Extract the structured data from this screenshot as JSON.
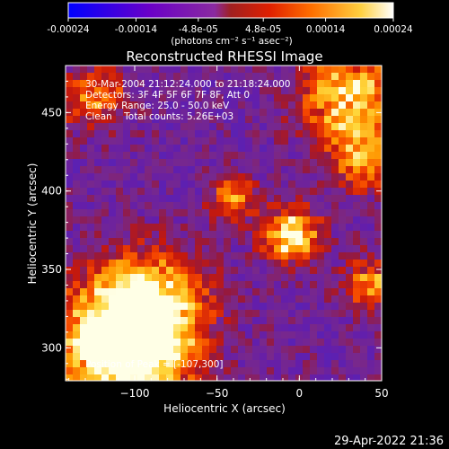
{
  "chart_data": {
    "type": "heatmap",
    "title": "Reconstructed RHESSI Image",
    "colorbar": {
      "ticks": [
        "-0.00024",
        "-0.00014",
        "-4.8e-05",
        "4.8e-05",
        "0.00014",
        "0.00024"
      ],
      "tick_values": [
        -0.00024,
        -0.00014,
        -4.8e-05,
        4.8e-05,
        0.00014,
        0.00024
      ],
      "range": [
        -0.00024,
        0.00024
      ],
      "unit_label": "(photons cm⁻² s⁻¹ asec⁻²)"
    },
    "xlabel": "Heliocentric X (arcsec)",
    "ylabel": "Heliocentric Y (arcsec)",
    "xlim": [
      -142,
      50
    ],
    "ylim": [
      279,
      480
    ],
    "xticks": [
      -100,
      -50,
      0,
      50
    ],
    "xtick_labels": [
      "−100",
      "−50",
      "0",
      "50"
    ],
    "yticks": [
      300,
      350,
      400,
      450
    ],
    "ytick_labels": [
      "300",
      "350",
      "400",
      "450"
    ],
    "annotations": {
      "time_range": "30-Mar-2004 21:12:24.000 to 21:18:24.000",
      "detectors": "Detectors: 3F 4F 5F 6F 7F 8F, Att 0",
      "energy": "Energy Range: 25.0 - 50.0 keV",
      "clean": "Clean    Total counts: 5.26E+03",
      "peak": "Position of Peak = [-107,300]"
    },
    "peak_position": [
      -107,
      300
    ],
    "hotspots": [
      {
        "x": -107,
        "y": 300,
        "amplitude": 1.0,
        "width": 28
      },
      {
        "x": -90,
        "y": 330,
        "amplitude": 0.6,
        "width": 22
      },
      {
        "x": -5,
        "y": 372,
        "amplitude": 0.72,
        "width": 12
      },
      {
        "x": -40,
        "y": 395,
        "amplitude": 0.45,
        "width": 10
      },
      {
        "x": 30,
        "y": 460,
        "amplitude": 0.7,
        "width": 20
      },
      {
        "x": 40,
        "y": 420,
        "amplitude": 0.5,
        "width": 14
      },
      {
        "x": -125,
        "y": 460,
        "amplitude": 0.45,
        "width": 14
      },
      {
        "x": 45,
        "y": 340,
        "amplitude": 0.5,
        "width": 12
      }
    ]
  },
  "footer": {
    "timestamp": "29-Apr-2022 21:36"
  }
}
